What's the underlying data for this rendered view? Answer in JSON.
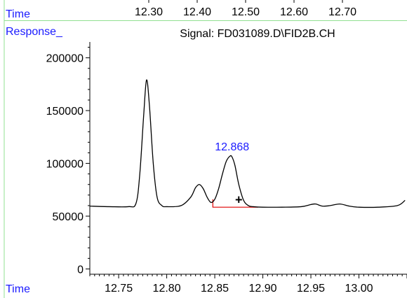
{
  "labels": {
    "top_axis_label": "Time",
    "response_label": "Response_",
    "bottom_axis_label": "Time"
  },
  "colors": {
    "axis_label_blue": "#1a1aff",
    "trace": "#000000",
    "baseline": "#e00000",
    "frame": "#90e090"
  },
  "chart_data": {
    "type": "line",
    "title": "Signal: FD031089.D\\FID2B.CH",
    "xlabel": "Time",
    "ylabel": "Response_",
    "xlim": [
      12.72,
      13.05
    ],
    "ylim": [
      -5000,
      215000
    ],
    "top_axis_ticks": [
      "12.30",
      "12.40",
      "12.50",
      "12.60",
      "12.70"
    ],
    "x_ticks": [
      12.75,
      12.8,
      12.85,
      12.9,
      12.95,
      13.0
    ],
    "x_tick_labels": [
      "12.75",
      "12.80",
      "12.85",
      "12.90",
      "12.95",
      "13.00"
    ],
    "y_ticks": [
      0,
      50000,
      100000,
      150000,
      200000
    ],
    "y_tick_labels": [
      "0",
      "50000",
      "100000",
      "150000",
      "200000"
    ],
    "series": [
      {
        "x": [
          12.72,
          12.74,
          12.76,
          12.768,
          12.772,
          12.776,
          12.779,
          12.782,
          12.786,
          12.79,
          12.795,
          12.8,
          12.815,
          12.825,
          12.83,
          12.834,
          12.838,
          12.842,
          12.846,
          12.85,
          12.854,
          12.858,
          12.862,
          12.866,
          12.868,
          12.871,
          12.875,
          12.88,
          12.885,
          12.89,
          12.9,
          12.92,
          12.94,
          12.95,
          12.955,
          12.962,
          12.97,
          12.98,
          12.99,
          13.0,
          13.02,
          13.04,
          13.048
        ],
        "y": [
          59500,
          59000,
          59000,
          62000,
          90000,
          145000,
          179000,
          155000,
          100000,
          68000,
          60000,
          59000,
          60000,
          68000,
          77000,
          80000,
          76000,
          68000,
          63000,
          66000,
          76000,
          90000,
          102000,
          107000,
          106000,
          98000,
          80000,
          65000,
          60000,
          59000,
          58500,
          58500,
          59000,
          61000,
          61500,
          59500,
          60000,
          61500,
          59500,
          58500,
          58500,
          60000,
          65000
        ]
      }
    ],
    "peak_annotation": {
      "label": "12.868",
      "x": 12.868,
      "y": 107000
    },
    "integration_baseline": {
      "start": [
        12.848,
        66000
      ],
      "corner": [
        12.848,
        58500
      ],
      "end": [
        12.895,
        58500
      ]
    },
    "cursor_marker": {
      "symbol": "+",
      "x": 12.875,
      "y": 65500
    }
  }
}
